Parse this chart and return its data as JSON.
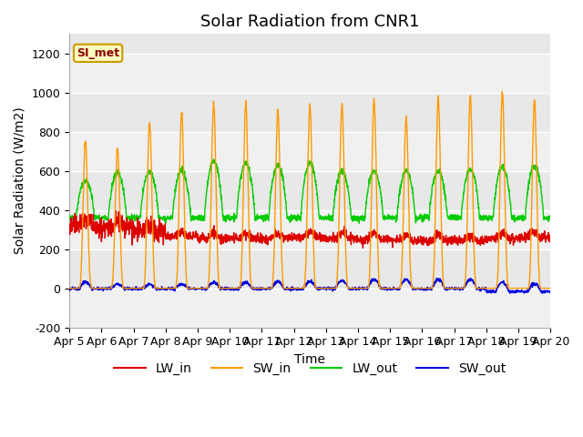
{
  "title": "Solar Radiation from CNR1",
  "xlabel": "Time",
  "ylabel": "Solar Radiation (W/m2)",
  "ylim": [
    -200,
    1300
  ],
  "yticks": [
    -200,
    0,
    200,
    400,
    600,
    800,
    1000,
    1200
  ],
  "x_tick_labels": [
    "Apr 5",
    "Apr 6",
    "Apr 7",
    "Apr 8",
    "Apr 9",
    "Apr 10",
    "Apr 11",
    "Apr 12",
    "Apr 13",
    "Apr 14",
    "Apr 15",
    "Apr 16",
    "Apr 17",
    "Apr 18",
    "Apr 19",
    "Apr 20"
  ],
  "line_colors": {
    "LW_in": "#dd0000",
    "SW_in": "#ff9900",
    "LW_out": "#00cc00",
    "SW_out": "#0000dd"
  },
  "legend_label": "SI_met",
  "legend_box_facecolor": "#ffffc0",
  "legend_box_edgecolor": "#cc9900",
  "legend_text_color": "#8b0000",
  "background_color": "#ffffff",
  "plot_bg_color": "#e8e8e8",
  "plot_bg_light": "#f0f0f0",
  "grid_color": "#ffffff",
  "title_fontsize": 13,
  "axis_fontsize": 10,
  "tick_fontsize": 9,
  "n_days": 15,
  "points_per_day": 144,
  "SW_in_peaks": [
    750,
    720,
    850,
    900,
    950,
    950,
    910,
    930,
    940,
    960,
    870,
    970,
    980,
    1000,
    960
  ],
  "LW_out_peaks": [
    550,
    590,
    600,
    600,
    650,
    640,
    630,
    640,
    600,
    600,
    600,
    600,
    610,
    620,
    625
  ],
  "LW_out_night": 360,
  "LW_in_base": [
    320,
    310,
    295,
    265,
    255,
    255,
    255,
    260,
    255,
    250,
    245,
    245,
    245,
    255,
    260
  ],
  "SW_out_peaks": [
    30,
    20,
    20,
    20,
    30,
    30,
    35,
    35,
    40,
    45,
    45,
    45,
    45,
    45,
    40
  ]
}
